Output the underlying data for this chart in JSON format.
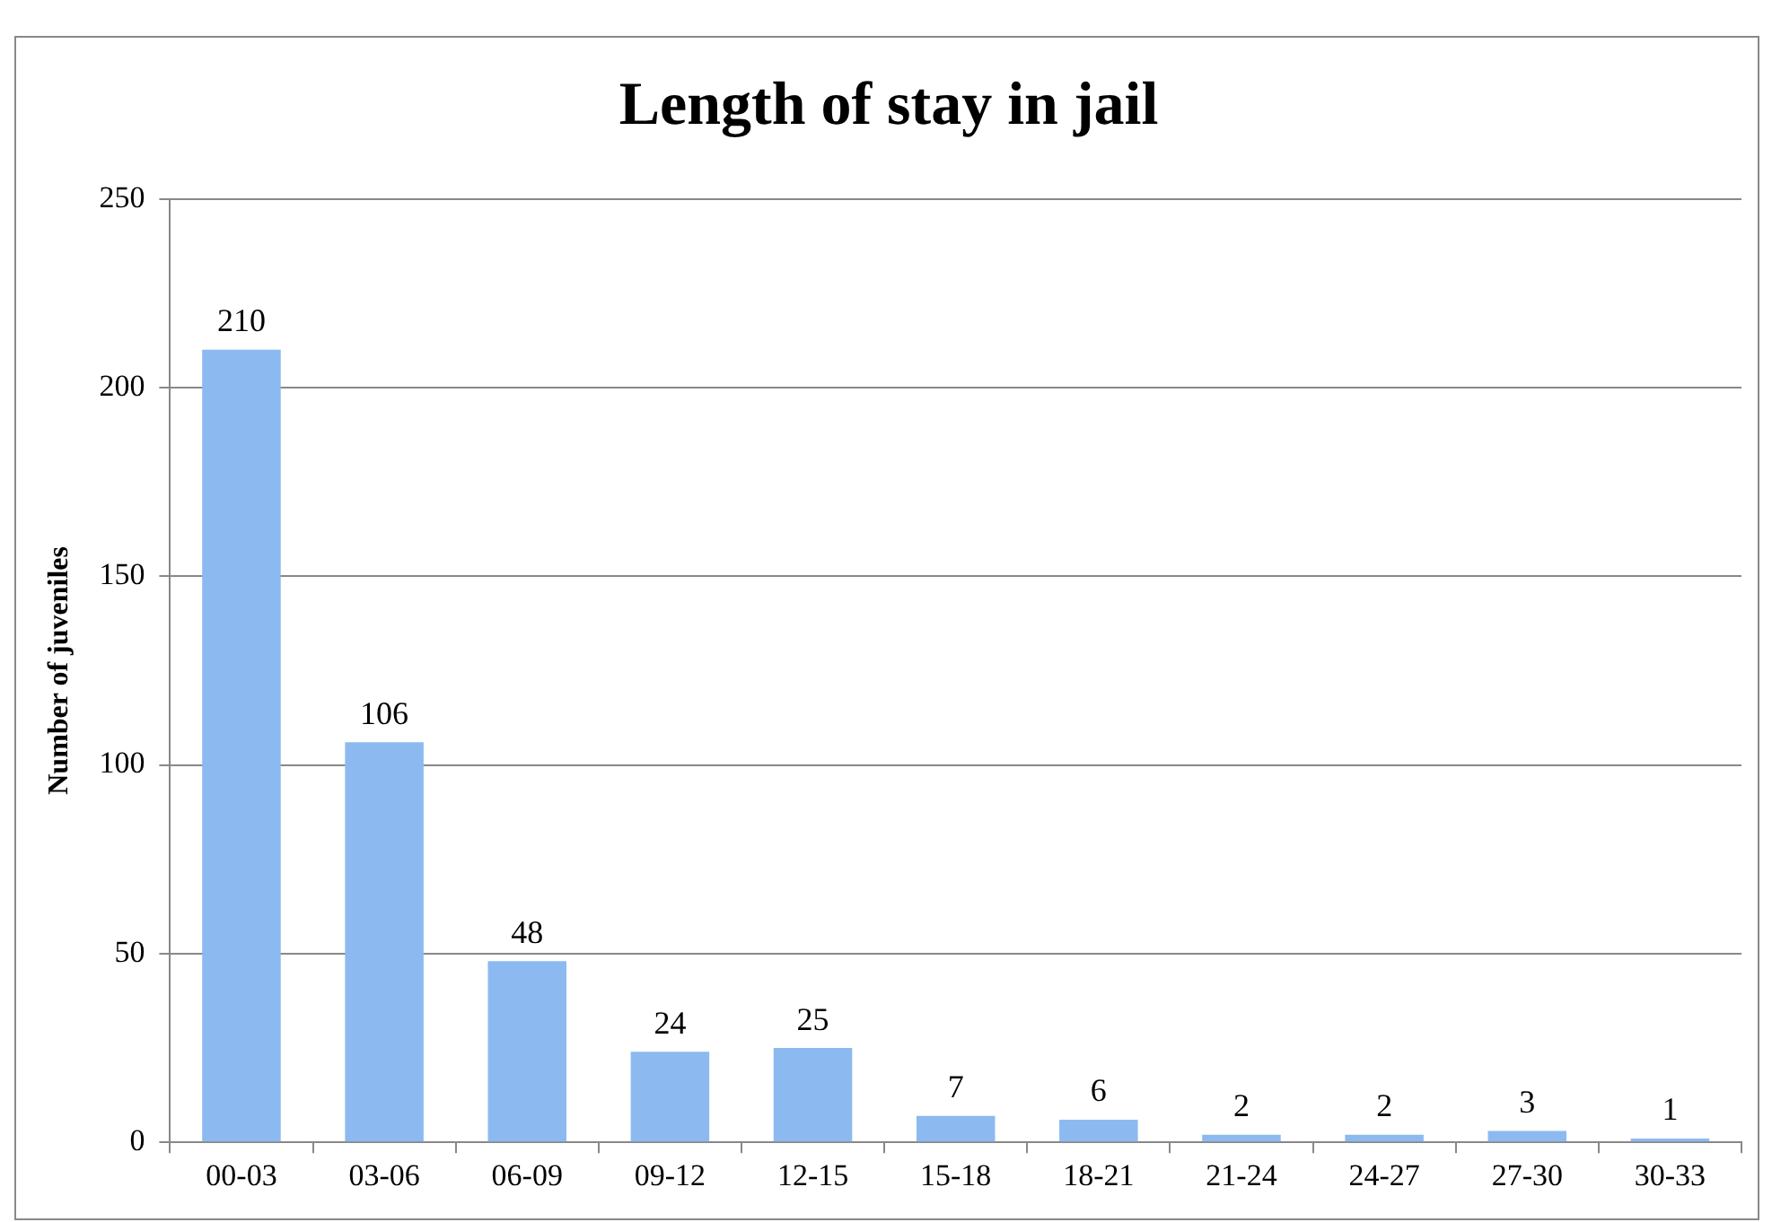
{
  "chart_data": {
    "type": "bar",
    "title": "Length of stay in jail",
    "ylabel": "Number of juveniles",
    "categories": [
      "00-03",
      "03-06",
      "06-09",
      "09-12",
      "12-15",
      "15-18",
      "18-21",
      "21-24",
      "24-27",
      "27-30",
      "30-33"
    ],
    "values": [
      210,
      106,
      48,
      24,
      25,
      7,
      6,
      2,
      2,
      3,
      1
    ],
    "color": "#8cbaf0",
    "ylim": [
      0,
      250
    ],
    "yticks": [
      0,
      50,
      100,
      150,
      200,
      250
    ],
    "grid": "y",
    "data_labels": true
  }
}
